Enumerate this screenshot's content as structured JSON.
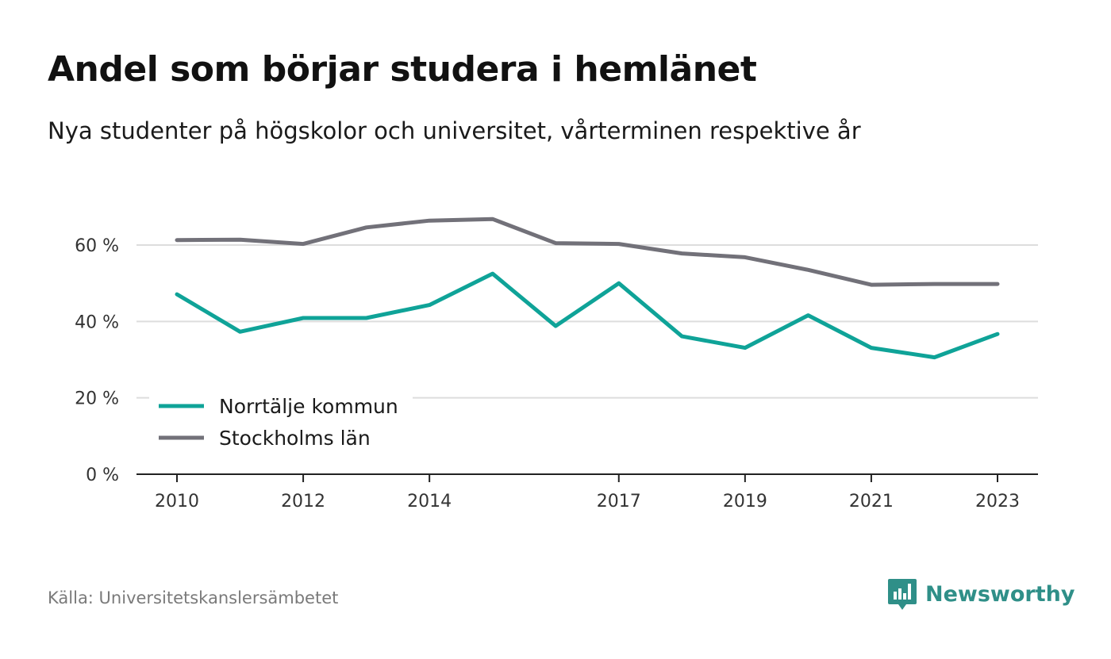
{
  "title": "Andel som börjar studera i hemlänet",
  "subtitle": "Nya studenter på högskolor och universitet, vårterminen respektive år",
  "source": "Källa: Universitetskanslersämbetet",
  "brand": {
    "name": "Newsworthy",
    "icon": "newsworthy-logo-icon",
    "color": "#2f8f88"
  },
  "chart_data": {
    "type": "line",
    "x": [
      2010,
      2011,
      2012,
      2013,
      2014,
      2015,
      2016,
      2017,
      2018,
      2019,
      2020,
      2021,
      2022,
      2023
    ],
    "x_tick_labels": [
      "2010",
      "2012",
      "2014",
      "2017",
      "2019",
      "2021",
      "2023"
    ],
    "y_tick_labels": [
      "0 %",
      "20 %",
      "40 %",
      "60 %"
    ],
    "y_ticks": [
      0,
      20,
      40,
      60
    ],
    "ylim": [
      0,
      70
    ],
    "grid": true,
    "legend_position": "bottom-left",
    "series": [
      {
        "name": "Norrtälje kommun",
        "color": "#0fa398",
        "values": [
          47.1,
          37.3,
          40.9,
          40.9,
          44.3,
          52.5,
          38.8,
          50.0,
          36.1,
          33.1,
          41.6,
          33.1,
          30.6,
          36.7
        ]
      },
      {
        "name": "Stockholms län",
        "color": "#727179",
        "values": [
          61.3,
          61.4,
          60.3,
          64.6,
          66.4,
          66.8,
          60.5,
          60.3,
          57.8,
          56.8,
          53.5,
          49.6,
          49.8,
          49.8
        ]
      }
    ]
  }
}
